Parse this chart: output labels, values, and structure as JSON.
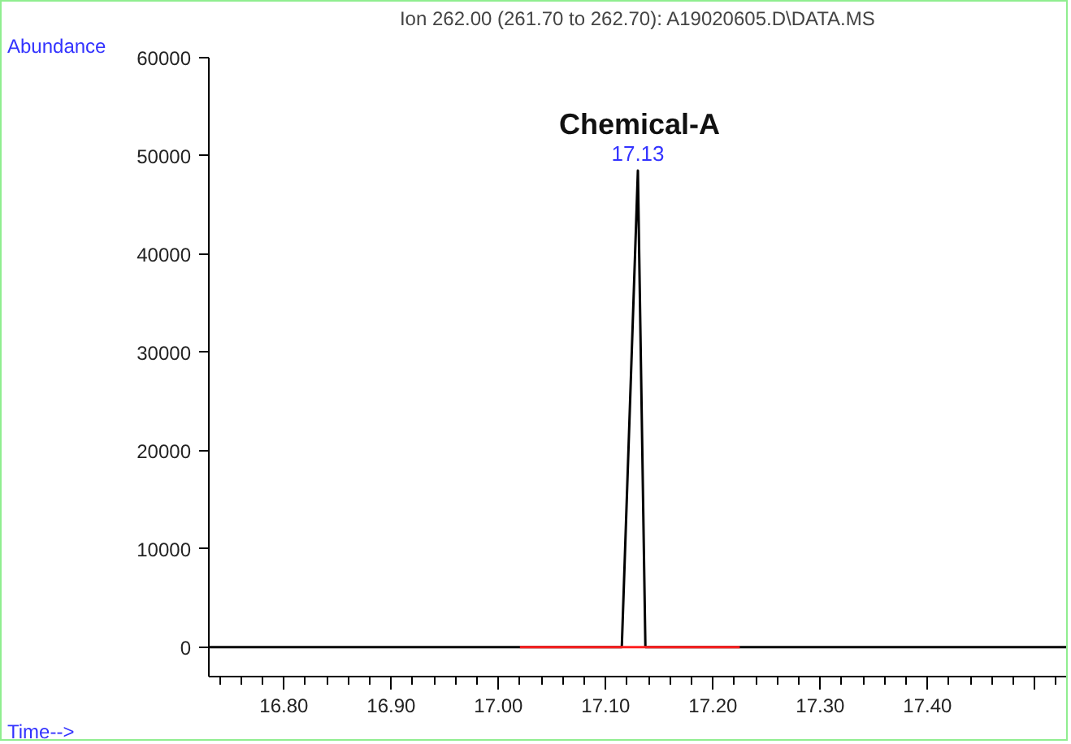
{
  "chart_data": {
    "type": "line",
    "title": "Ion 262.00 (261.70 to 262.70): A19020605.D\\DATA.MS",
    "xlabel": "Time-->",
    "ylabel": "Abundance",
    "series": [
      {
        "color": "#000000",
        "x": [
          16.73,
          17.115,
          17.13,
          17.137,
          17.53
        ],
        "values": [
          0,
          0,
          48500,
          0,
          0
        ]
      },
      {
        "color": "#ff2020",
        "x": [
          17.02,
          17.225
        ],
        "values": [
          0,
          0
        ]
      }
    ],
    "annotations": [
      "Chemical-A",
      {
        "text": "17.13",
        "x": 17.13,
        "y": 48500
      }
    ],
    "xlim": [
      16.73,
      17.53
    ],
    "ylim": [
      -3000,
      60000
    ],
    "xticks": [
      {
        "value": 16.8,
        "label": "16.80"
      },
      {
        "value": 16.9,
        "label": "16.90"
      },
      {
        "value": 17.0,
        "label": "17.00"
      },
      {
        "value": 17.1,
        "label": "17.10"
      },
      {
        "value": 17.2,
        "label": "17.20"
      },
      {
        "value": 17.3,
        "label": "17.30"
      },
      {
        "value": 17.4,
        "label": "17.40"
      },
      {
        "value": 17.5,
        "label": null
      }
    ],
    "yticks": [
      0,
      10000,
      20000,
      30000,
      40000,
      50000,
      60000
    ],
    "grid": false,
    "marker": "none",
    "line_style": "solid"
  }
}
